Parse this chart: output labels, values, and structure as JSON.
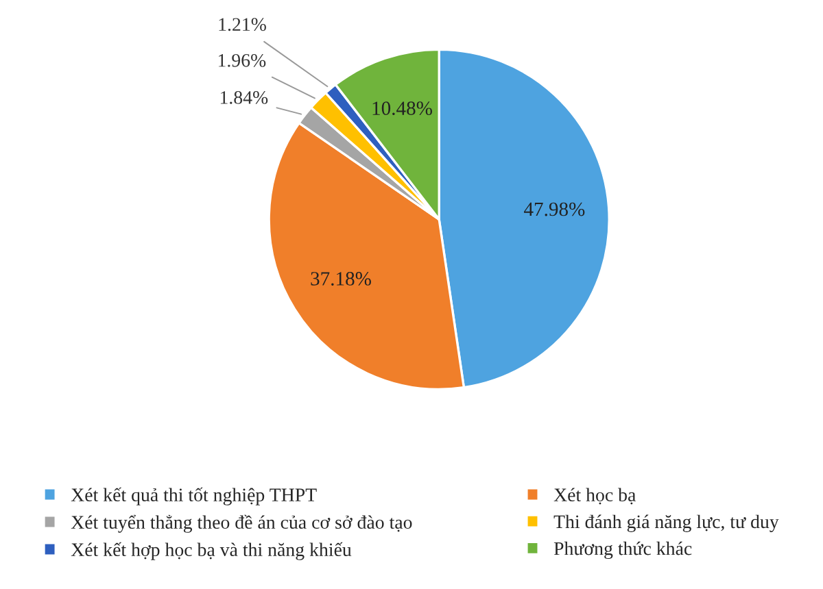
{
  "chart_data": {
    "type": "pie",
    "categories": [
      "Xét kết quả thi tốt nghiệp THPT",
      "Xét học bạ",
      "Xét tuyển thẳng theo đề án của cơ sở đào tạo",
      "Thi đánh giá năng lực, tư duy",
      "Xét kết hợp học bạ và thi năng khiếu",
      "Phương thức khác"
    ],
    "values": [
      47.98,
      37.18,
      1.84,
      1.96,
      1.21,
      10.48
    ],
    "colors": [
      "#4ea3e0",
      "#f07f2a",
      "#a5a5a5",
      "#ffc000",
      "#2e5fbf",
      "#70b43c"
    ],
    "value_labels": [
      "47.98%",
      "37.18%",
      "1.84%",
      "1.96%",
      "1.21%",
      "10.48%"
    ],
    "legend": "bottom"
  }
}
